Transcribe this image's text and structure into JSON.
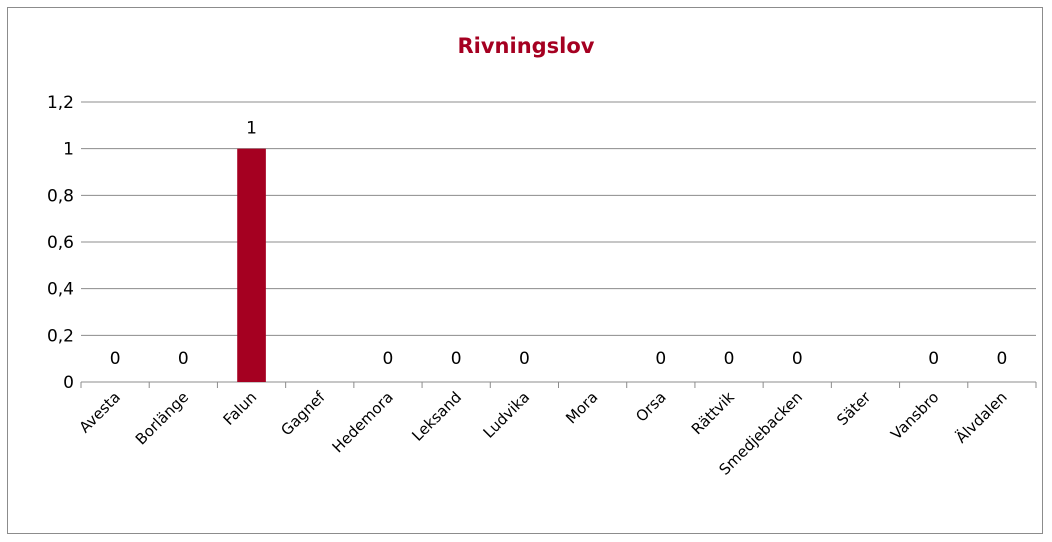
{
  "chart_data": {
    "type": "bar",
    "title": "Rivningslov",
    "categories": [
      "Avesta",
      "Borlänge",
      "Falun",
      "Gagnef",
      "Hedemora",
      "Leksand",
      "Ludvika",
      "Mora",
      "Orsa",
      "Rättvik",
      "Smedjebacken",
      "Säter",
      "Vansbro",
      "Älvdalen"
    ],
    "values": [
      0,
      0,
      1,
      null,
      0,
      0,
      0,
      null,
      0,
      0,
      0,
      null,
      0,
      0
    ],
    "data_labels": [
      "0",
      "0",
      "1",
      "",
      "0",
      "0",
      "0",
      "",
      "0",
      "0",
      "0",
      "",
      "0",
      "0"
    ],
    "ylim": [
      0,
      1.2
    ],
    "yticks": [
      "0",
      "0,2",
      "0,4",
      "0,6",
      "0,8",
      "1",
      "1,2"
    ],
    "ytick_values": [
      0,
      0.2,
      0.4,
      0.6,
      0.8,
      1.0,
      1.2
    ],
    "xlabel": "",
    "ylabel": "",
    "grid": true,
    "legend": "none",
    "colors": {
      "bar": "#A50021",
      "title": "#A50021",
      "grid": "#8c8c8c"
    }
  }
}
